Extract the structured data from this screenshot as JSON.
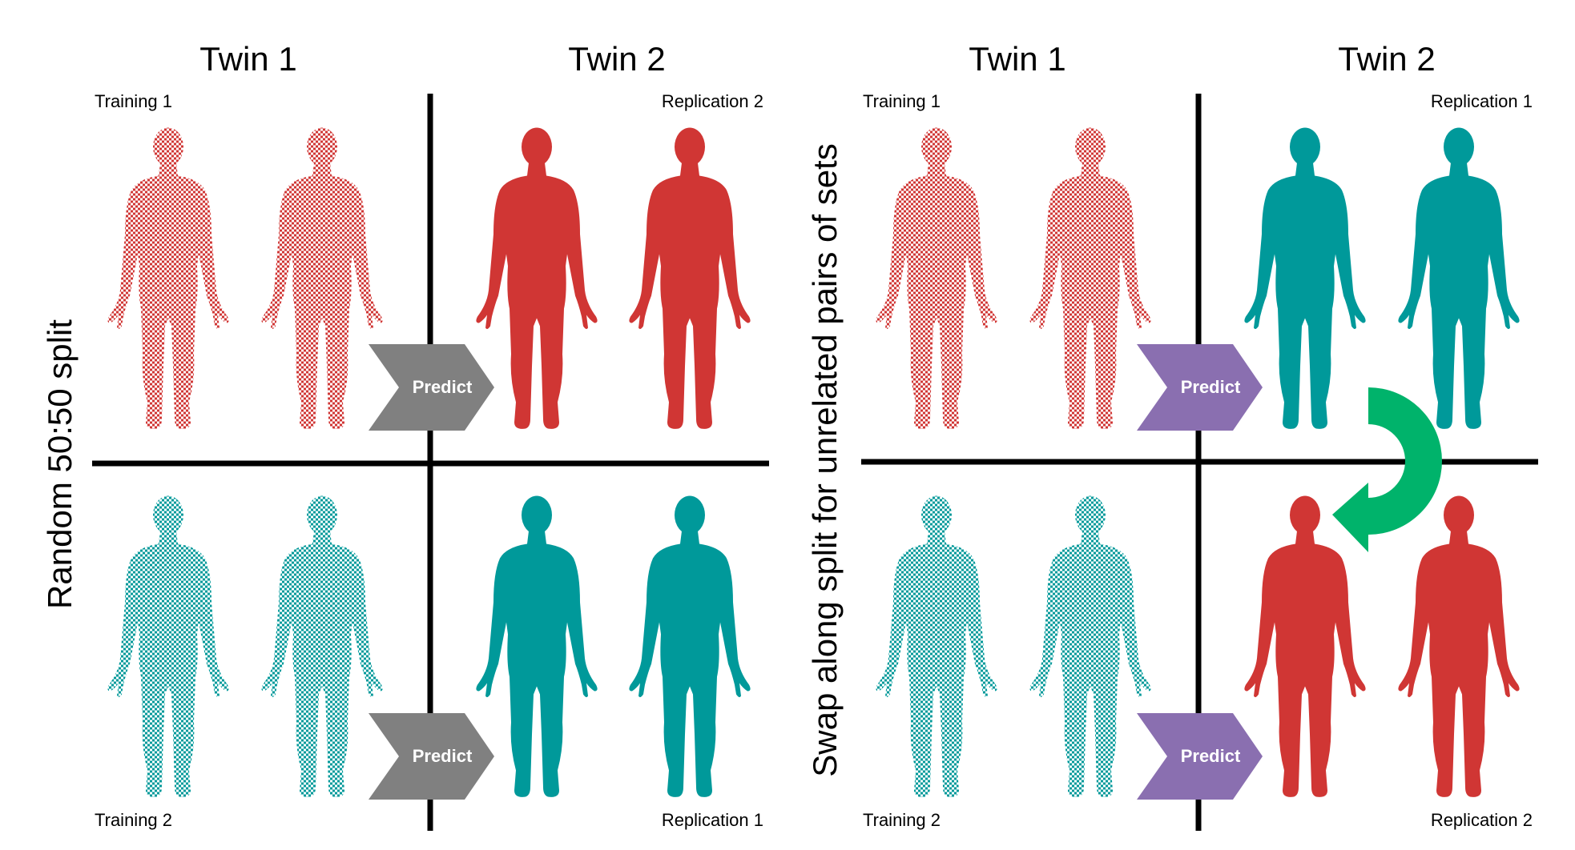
{
  "colors": {
    "red": "#d03634",
    "teal": "#00999a",
    "predict_gray": "#808080",
    "predict_purple": "#8a6fb0",
    "swap_arrow_green": "#00b36b",
    "lines": "#000000"
  },
  "left_panel": {
    "twin1_header": "Twin 1",
    "twin2_header": "Twin 2",
    "side_label": "Random 50:50 split",
    "top_left_label": "Training 1",
    "top_right_label": "Replication 2",
    "bottom_left_label": "Training 2",
    "bottom_right_label": "Replication 1",
    "predict_top": "Predict",
    "predict_bottom": "Predict"
  },
  "right_panel": {
    "twin1_header": "Twin 1",
    "twin2_header": "Twin 2",
    "side_label": "Swap along split for unrelated pairs of sets",
    "top_left_label": "Training 1",
    "top_right_label": "Replication 1",
    "bottom_left_label": "Training 2",
    "bottom_right_label": "Replication 2",
    "predict_top": "Predict",
    "predict_bottom": "Predict"
  },
  "icons": {
    "figure": "human-silhouette-icon",
    "swap": "curved-swap-arrow-icon"
  }
}
